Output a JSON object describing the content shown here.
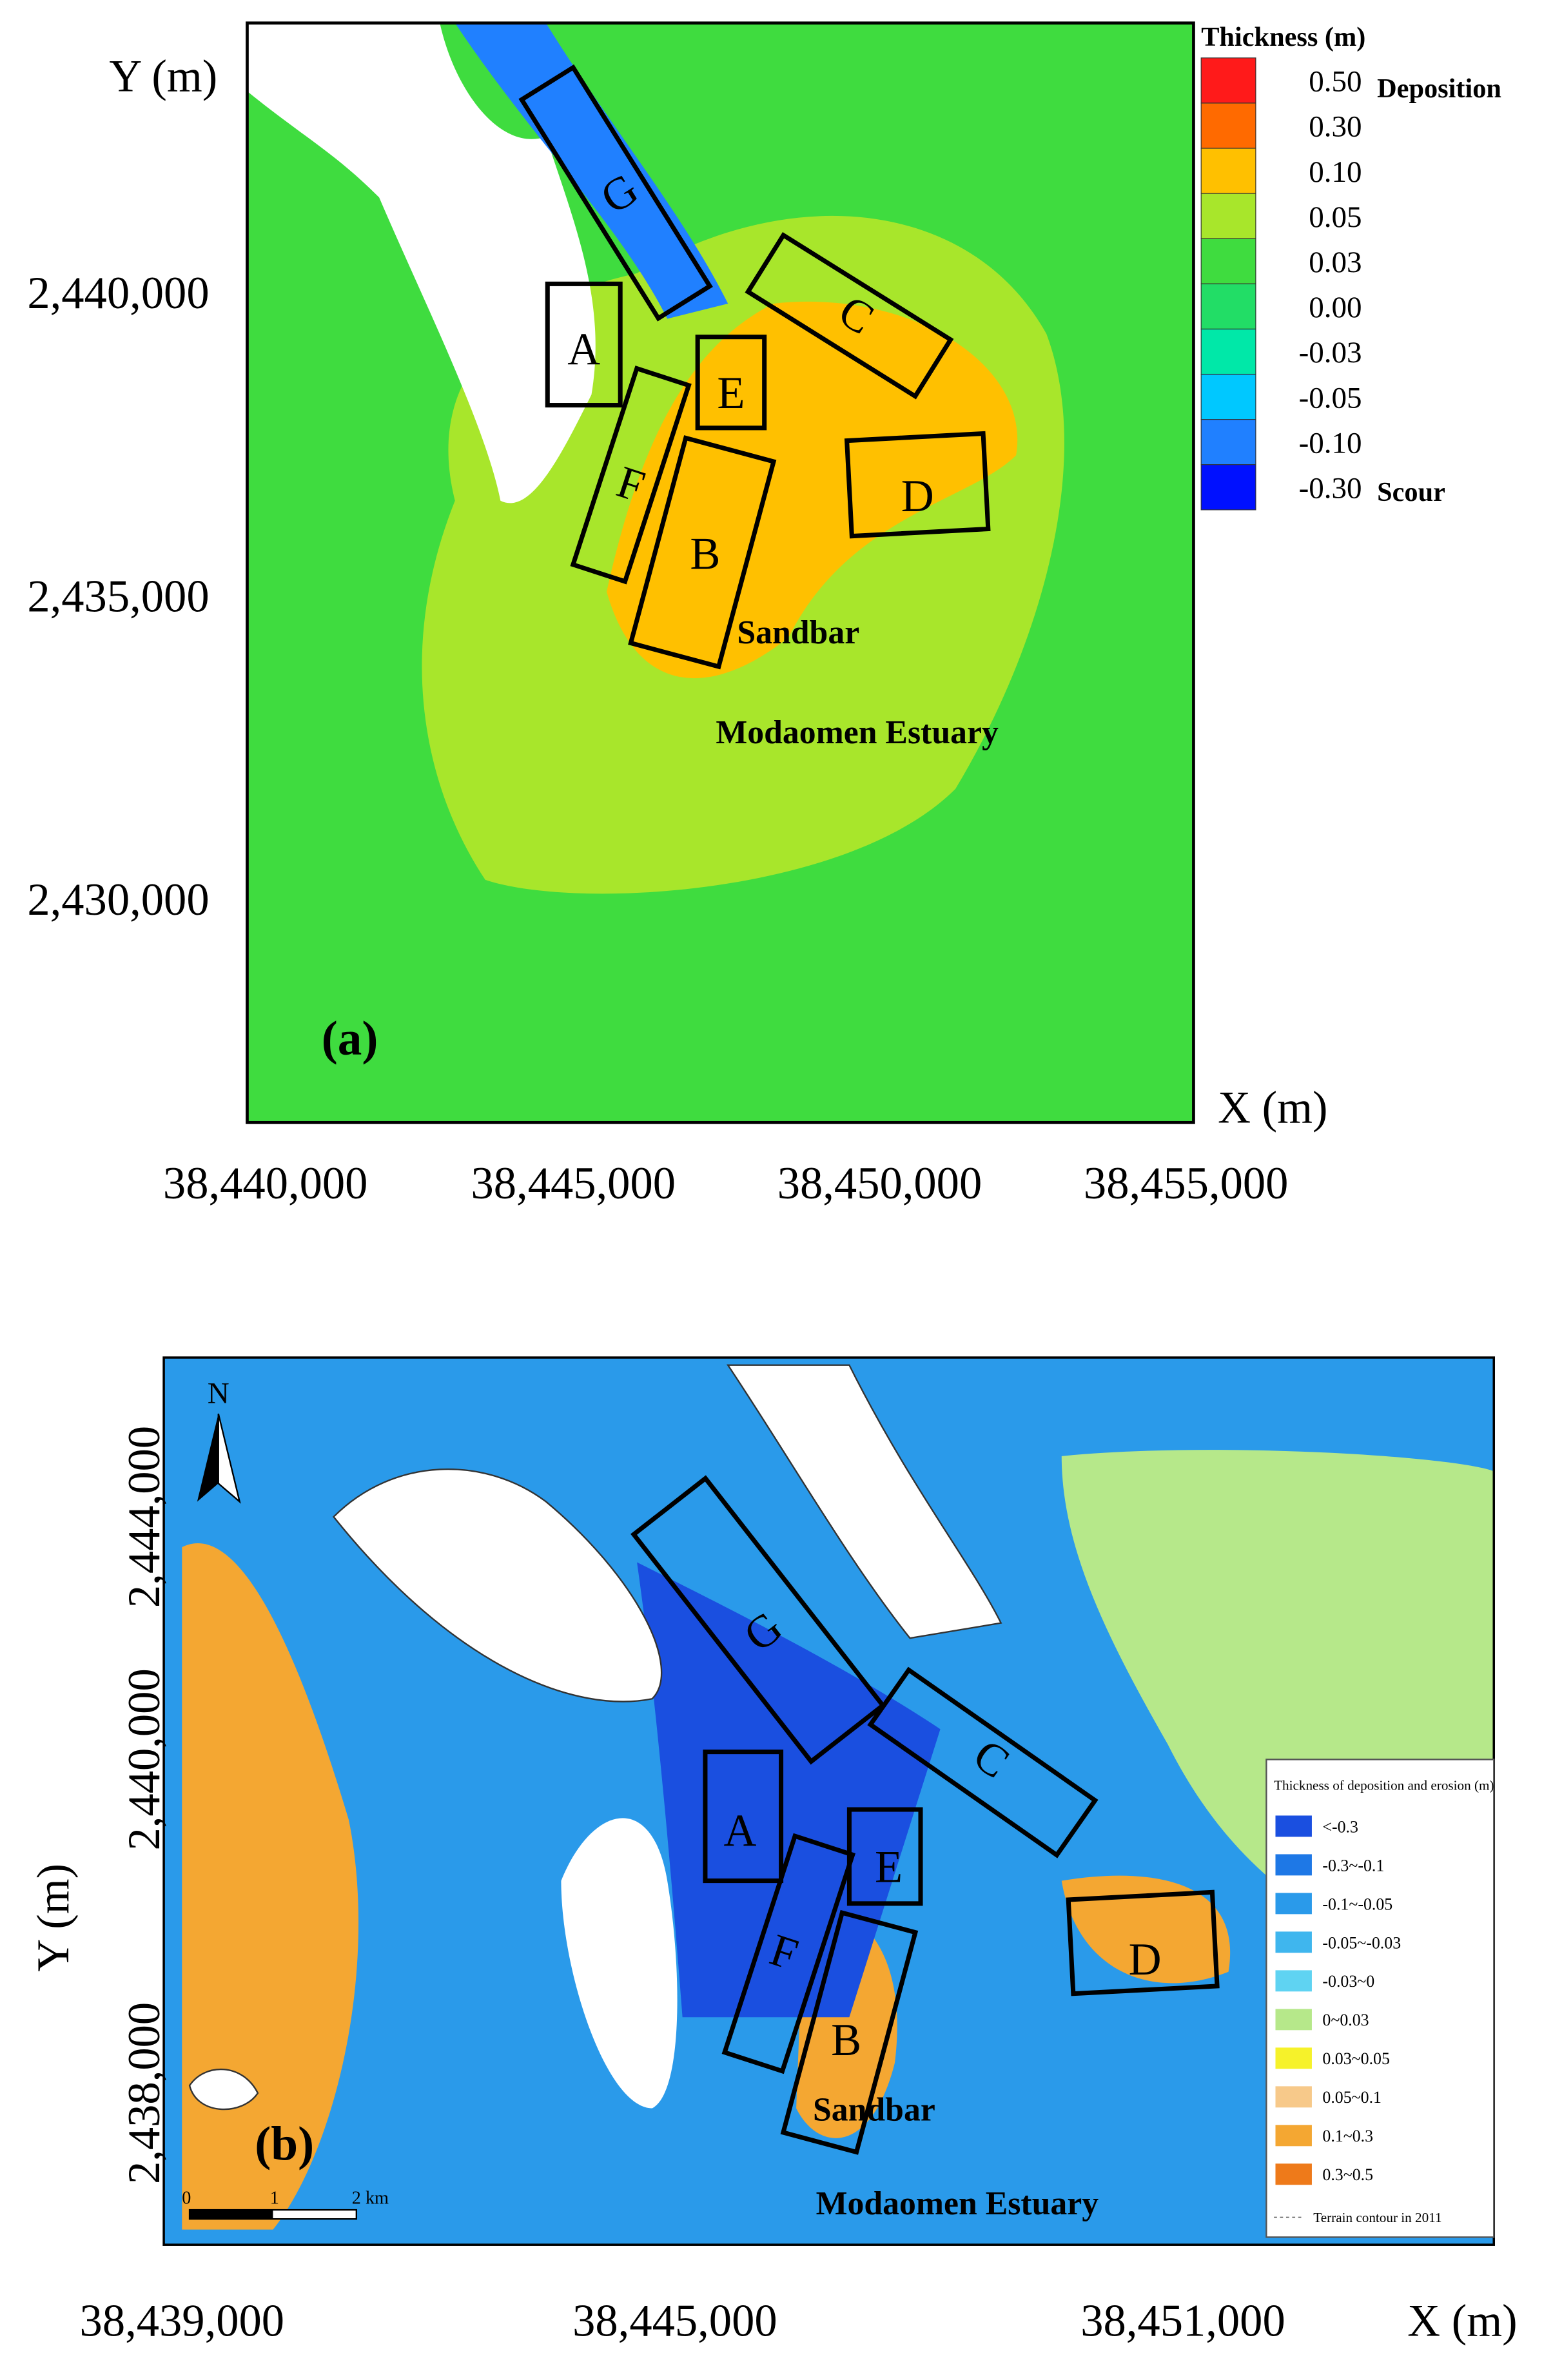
{
  "panel_a": {
    "y_axis_title": "Y (m)",
    "x_axis_title": "X (m)",
    "yticks": [
      "2,440,000",
      "2,435,000",
      "2,430,000"
    ],
    "xticks": [
      "38,440,000",
      "38,445,000",
      "38,450,000",
      "38,455,000"
    ],
    "legend": {
      "title": "Thickness (m)",
      "deposition": "Deposition",
      "scour": "Scour",
      "items": [
        {
          "label": "0.50",
          "color": "#ff1a1a"
        },
        {
          "label": "0.30",
          "color": "#ff6a00"
        },
        {
          "label": "0.10",
          "color": "#ffc000"
        },
        {
          "label": "0.05",
          "color": "#a8e62b"
        },
        {
          "label": "0.03",
          "color": "#3fdc3f"
        },
        {
          "label": "0.00",
          "color": "#22dd66"
        },
        {
          "label": "-0.03",
          "color": "#00e8a8"
        },
        {
          "label": "-0.05",
          "color": "#00c8ff"
        },
        {
          "label": "-0.10",
          "color": "#2080ff"
        },
        {
          "label": "-0.30",
          "color": "#0010ff"
        }
      ]
    },
    "boxes": [
      "A",
      "B",
      "C",
      "D",
      "E",
      "F",
      "G"
    ],
    "sandbar": "Sandbar",
    "estuary": "Modaomen Estuary",
    "panel_label": "(a)"
  },
  "panel_b": {
    "y_axis_title": "Y (m)",
    "x_axis_title": "X (m)",
    "yticks": [
      "2,444,000",
      "2,440,000",
      "2,438,000"
    ],
    "xticks": [
      "38,439,000",
      "38,445,000",
      "38,451,000"
    ],
    "north": "N",
    "scale": [
      "0",
      "1",
      "2 km"
    ],
    "legend": {
      "title": "Thickness of deposition and erosion (m)",
      "items": [
        {
          "label": "<-0.3",
          "color": "#1a4fe0"
        },
        {
          "label": "-0.3~-0.1",
          "color": "#1e78e6"
        },
        {
          "label": "-0.1~-0.05",
          "color": "#2a9aea"
        },
        {
          "label": "-0.05~-0.03",
          "color": "#3fb6ee"
        },
        {
          "label": "-0.03~0",
          "color": "#5fd3f2"
        },
        {
          "label": "0~0.03",
          "color": "#b6e88a"
        },
        {
          "label": "0.03~0.05",
          "color": "#f6f22a"
        },
        {
          "label": "0.05~0.1",
          "color": "#f7c98a"
        },
        {
          "label": "0.1~0.3",
          "color": "#f4a732"
        },
        {
          "label": "0.3~0.5",
          "color": "#ee7a1a"
        }
      ],
      "contour": "Terrain contour in 2011"
    },
    "boxes": [
      "A",
      "B",
      "C",
      "D",
      "E",
      "F",
      "G"
    ],
    "sandbar": "Sandbar",
    "estuary": "Modaomen Estuary",
    "panel_label": "(b)"
  }
}
